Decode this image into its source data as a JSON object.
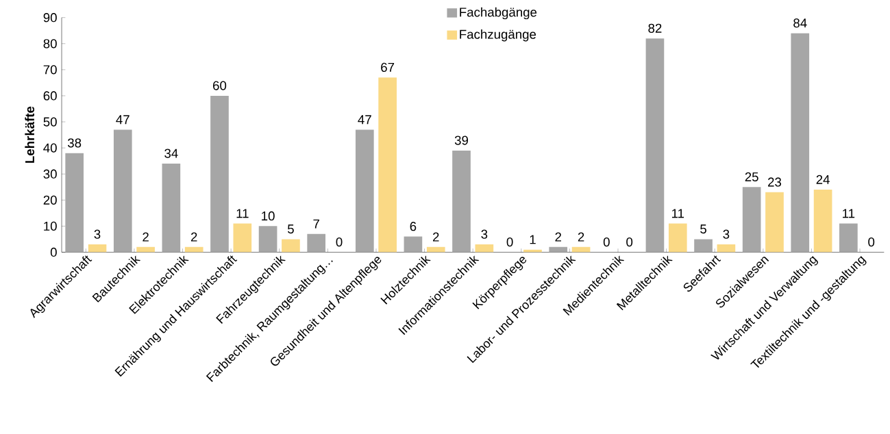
{
  "chart_data": {
    "type": "bar",
    "ylabel": "Lehrkäfte",
    "categories": [
      "Agrarwirtschaft",
      "Bautechnik",
      "Elektrotechnik",
      "Ernährung und Hauswirtschaft",
      "Fahrzeugtechnik",
      "Farbtechnik, Raumgestaltung…",
      "Gesundheit und Altenpflege",
      "Holztechnik",
      "Informationstechnik",
      "Körperpflege",
      "Labor- und Prozesstechnik",
      "Medientechnik",
      "Metalltechnik",
      "Seefahrt",
      "Sozialwesen",
      "Wirtschaft und Verwaltung",
      "Textiltechnik und -gestaltung"
    ],
    "series": [
      {
        "name": "Fachabgänge",
        "color": "#a6a6a6",
        "values": [
          38,
          47,
          34,
          60,
          10,
          7,
          47,
          6,
          39,
          0,
          2,
          0,
          82,
          5,
          25,
          84,
          11
        ]
      },
      {
        "name": "Fachzugänge",
        "color": "#fad985",
        "values": [
          3,
          2,
          2,
          11,
          5,
          0,
          67,
          2,
          3,
          1,
          2,
          0,
          11,
          3,
          23,
          24,
          0
        ]
      }
    ],
    "ylim": [
      0,
      90
    ],
    "yticks": [
      0,
      10,
      20,
      30,
      40,
      50,
      60,
      70,
      80,
      90
    ],
    "data_labels": true,
    "legend": "top",
    "grid": false
  }
}
